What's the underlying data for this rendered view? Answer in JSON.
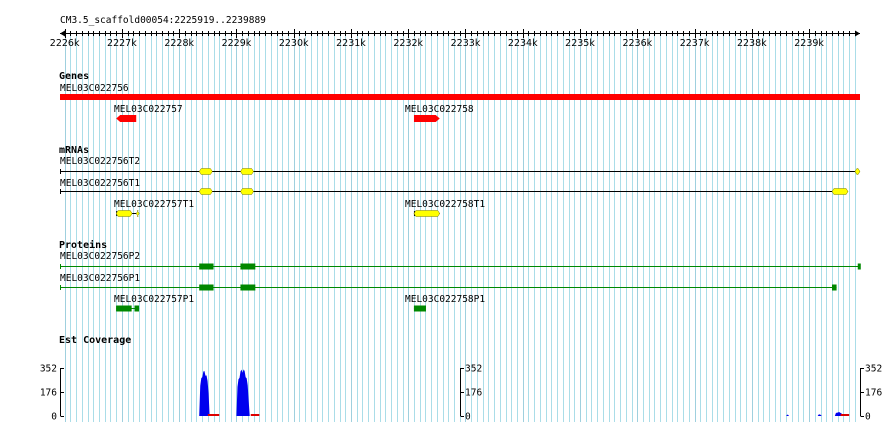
{
  "ruler": {
    "label": "CM3.5_scaffold00054:2225919..2239889",
    "start": 2225919,
    "end": 2239889,
    "ticks": [
      "2226k",
      "2227k",
      "2228k",
      "2229k",
      "2230k",
      "2231k",
      "2232k",
      "2233k",
      "2234k",
      "2235k",
      "2236k",
      "2237k",
      "2238k",
      "2239k"
    ]
  },
  "colors": {
    "gene": "#ff0000",
    "mrna": "#ffff00",
    "protein": "#008800",
    "coverage": "#0000ee",
    "grid": "#aadde8"
  },
  "tracks": {
    "genes": {
      "title": "Genes",
      "features": [
        {
          "name": "MEL03C022756",
          "start": 2225919,
          "end": 2239889,
          "strand": "none"
        },
        {
          "name": "MEL03C022757",
          "start": 2226900,
          "end": 2227250,
          "strand": "-"
        },
        {
          "name": "MEL03C022758",
          "start": 2232100,
          "end": 2232550,
          "strand": "+"
        }
      ]
    },
    "mrnas": {
      "title": "mRNAs",
      "features": [
        {
          "name": "MEL03C022756T2",
          "start": 2225919,
          "end": 2239889,
          "exons": [
            [
              2228350,
              2228580
            ],
            [
              2229070,
              2229300
            ],
            [
              2239800,
              2239889
            ]
          ]
        },
        {
          "name": "MEL03C022756T1",
          "start": 2225919,
          "end": 2239680,
          "exons": [
            [
              2228350,
              2228580
            ],
            [
              2229070,
              2229300
            ],
            [
              2239400,
              2239680
            ]
          ]
        },
        {
          "name": "MEL03C022757T1",
          "start": 2226900,
          "end": 2227300,
          "exons": [
            [
              2226900,
              2227180
            ],
            [
              2227250,
              2227300
            ]
          ]
        },
        {
          "name": "MEL03C022758T1",
          "start": 2232100,
          "end": 2232550,
          "exons": [
            [
              2232100,
              2232550
            ]
          ]
        }
      ]
    },
    "proteins": {
      "title": "Proteins",
      "features": [
        {
          "name": "MEL03C022756P2",
          "start": 2225919,
          "end": 2239889,
          "exons": [
            [
              2228350,
              2228600
            ],
            [
              2229070,
              2229330
            ],
            [
              2239850,
              2239889
            ]
          ]
        },
        {
          "name": "MEL03C022756P1",
          "start": 2225919,
          "end": 2239480,
          "exons": [
            [
              2228350,
              2228600
            ],
            [
              2229070,
              2229330
            ],
            [
              2239400,
              2239480
            ]
          ]
        },
        {
          "name": "MEL03C022757P1",
          "start": 2226900,
          "end": 2227300,
          "exons": [
            [
              2226900,
              2227170
            ],
            [
              2227220,
              2227300
            ]
          ]
        },
        {
          "name": "MEL03C022758P1",
          "start": 2232100,
          "end": 2232310,
          "exons": [
            [
              2232100,
              2232310
            ]
          ]
        }
      ]
    },
    "coverage": {
      "title": "Est Coverage",
      "scale_labels": [
        "352",
        "176",
        "0"
      ],
      "max": 352,
      "peaks": [
        {
          "start": 2228350,
          "end": 2228550,
          "value": 330
        },
        {
          "start": 2229000,
          "end": 2229250,
          "value": 345
        },
        {
          "start": 2238600,
          "end": 2238650,
          "value": 10
        },
        {
          "start": 2239150,
          "end": 2239220,
          "value": 12
        },
        {
          "start": 2239450,
          "end": 2239600,
          "value": 28
        }
      ]
    }
  }
}
